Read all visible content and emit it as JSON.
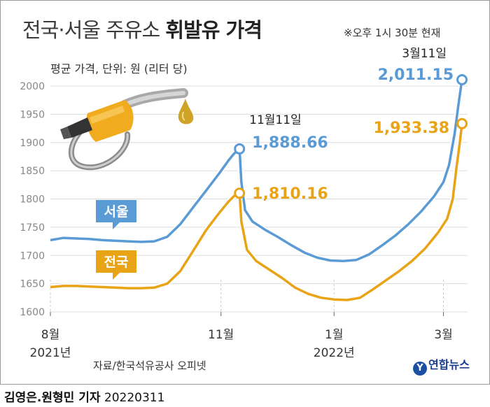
{
  "header": {
    "title_light": "전국·서울 주유소",
    "title_bold": "휘발유 가격",
    "time_note": "※오후 1시 30분 현재",
    "unit_note": "평균 가격, 단위: 원 (리터 당)"
  },
  "footer": {
    "source": "자료/한국석유공사 오피넷",
    "logo_text": "연합뉴스",
    "author": "김영은.원형민 기자",
    "date": "20220311"
  },
  "colors": {
    "seoul": "#5b9bd5",
    "national": "#e8a317",
    "grid": "#dcdcdc",
    "axis_text": "#888888"
  },
  "icons": {
    "illustration": "fuel-nozzle-icon"
  },
  "chart_data": {
    "type": "line",
    "x_start": "2021-08-01",
    "x_end": "2022-03-11",
    "x_ticks": [
      {
        "date": "2021-08-01",
        "label": "8월",
        "sublabel": "2021년"
      },
      {
        "date": "2021-11-01",
        "label": "11월",
        "sublabel": ""
      },
      {
        "date": "2022-01-01",
        "label": "1월",
        "sublabel": "2022년"
      },
      {
        "date": "2022-03-01",
        "label": "3월",
        "sublabel": ""
      }
    ],
    "ylim": [
      1600,
      2000
    ],
    "y_ticks": [
      1600,
      1650,
      1700,
      1750,
      1800,
      1850,
      1900,
      1950,
      2000
    ],
    "grid": "horizontal",
    "series": [
      {
        "name": "서울",
        "key": "seoul",
        "points": [
          [
            "2021-08-01",
            1727
          ],
          [
            "2021-08-08",
            1731
          ],
          [
            "2021-08-15",
            1730
          ],
          [
            "2021-08-22",
            1729
          ],
          [
            "2021-08-29",
            1727
          ],
          [
            "2021-09-05",
            1726
          ],
          [
            "2021-09-12",
            1725
          ],
          [
            "2021-09-19",
            1724
          ],
          [
            "2021-09-26",
            1725
          ],
          [
            "2021-10-03",
            1733
          ],
          [
            "2021-10-10",
            1755
          ],
          [
            "2021-10-17",
            1785
          ],
          [
            "2021-10-24",
            1815
          ],
          [
            "2021-10-31",
            1845
          ],
          [
            "2021-11-05",
            1868
          ],
          [
            "2021-11-08",
            1880
          ],
          [
            "2021-11-11",
            1888.66
          ],
          [
            "2021-11-12",
            1830
          ],
          [
            "2021-11-14",
            1780
          ],
          [
            "2021-11-18",
            1760
          ],
          [
            "2021-11-25",
            1745
          ],
          [
            "2021-12-02",
            1732
          ],
          [
            "2021-12-09",
            1718
          ],
          [
            "2021-12-16",
            1705
          ],
          [
            "2021-12-23",
            1696
          ],
          [
            "2021-12-30",
            1691
          ],
          [
            "2022-01-06",
            1690
          ],
          [
            "2022-01-13",
            1692
          ],
          [
            "2022-01-20",
            1702
          ],
          [
            "2022-01-27",
            1718
          ],
          [
            "2022-02-03",
            1735
          ],
          [
            "2022-02-10",
            1755
          ],
          [
            "2022-02-17",
            1778
          ],
          [
            "2022-02-24",
            1805
          ],
          [
            "2022-03-01",
            1830
          ],
          [
            "2022-03-04",
            1860
          ],
          [
            "2022-03-07",
            1915
          ],
          [
            "2022-03-09",
            1965
          ],
          [
            "2022-03-11",
            2011.15
          ]
        ],
        "highlights": [
          {
            "date": "2021-11-11",
            "value": "1,888.66",
            "date_label": "11월11일"
          },
          {
            "date": "2022-03-11",
            "value": "2,011.15",
            "date_label": "3월11일"
          }
        ]
      },
      {
        "name": "전국",
        "key": "national",
        "points": [
          [
            "2021-08-01",
            1644
          ],
          [
            "2021-08-08",
            1646
          ],
          [
            "2021-08-15",
            1646
          ],
          [
            "2021-08-22",
            1645
          ],
          [
            "2021-08-29",
            1644
          ],
          [
            "2021-09-05",
            1643
          ],
          [
            "2021-09-12",
            1642
          ],
          [
            "2021-09-19",
            1642
          ],
          [
            "2021-09-26",
            1643
          ],
          [
            "2021-10-03",
            1650
          ],
          [
            "2021-10-10",
            1672
          ],
          [
            "2021-10-17",
            1708
          ],
          [
            "2021-10-24",
            1745
          ],
          [
            "2021-10-31",
            1775
          ],
          [
            "2021-11-05",
            1795
          ],
          [
            "2021-11-08",
            1805
          ],
          [
            "2021-11-11",
            1810.16
          ],
          [
            "2021-11-12",
            1760
          ],
          [
            "2021-11-15",
            1710
          ],
          [
            "2021-11-20",
            1690
          ],
          [
            "2021-11-27",
            1675
          ],
          [
            "2021-12-04",
            1660
          ],
          [
            "2021-12-11",
            1643
          ],
          [
            "2021-12-18",
            1632
          ],
          [
            "2021-12-25",
            1625
          ],
          [
            "2022-01-01",
            1622
          ],
          [
            "2022-01-08",
            1621
          ],
          [
            "2022-01-15",
            1625
          ],
          [
            "2022-01-22",
            1640
          ],
          [
            "2022-01-29",
            1656
          ],
          [
            "2022-02-05",
            1672
          ],
          [
            "2022-02-12",
            1690
          ],
          [
            "2022-02-19",
            1712
          ],
          [
            "2022-02-26",
            1740
          ],
          [
            "2022-03-03",
            1765
          ],
          [
            "2022-03-06",
            1800
          ],
          [
            "2022-03-08",
            1855
          ],
          [
            "2022-03-10",
            1905
          ],
          [
            "2022-03-11",
            1933.38
          ]
        ],
        "highlights": [
          {
            "date": "2021-11-11",
            "value": "1,810.16",
            "date_label": ""
          },
          {
            "date": "2022-03-11",
            "value": "1,933.38",
            "date_label": ""
          }
        ]
      }
    ]
  }
}
